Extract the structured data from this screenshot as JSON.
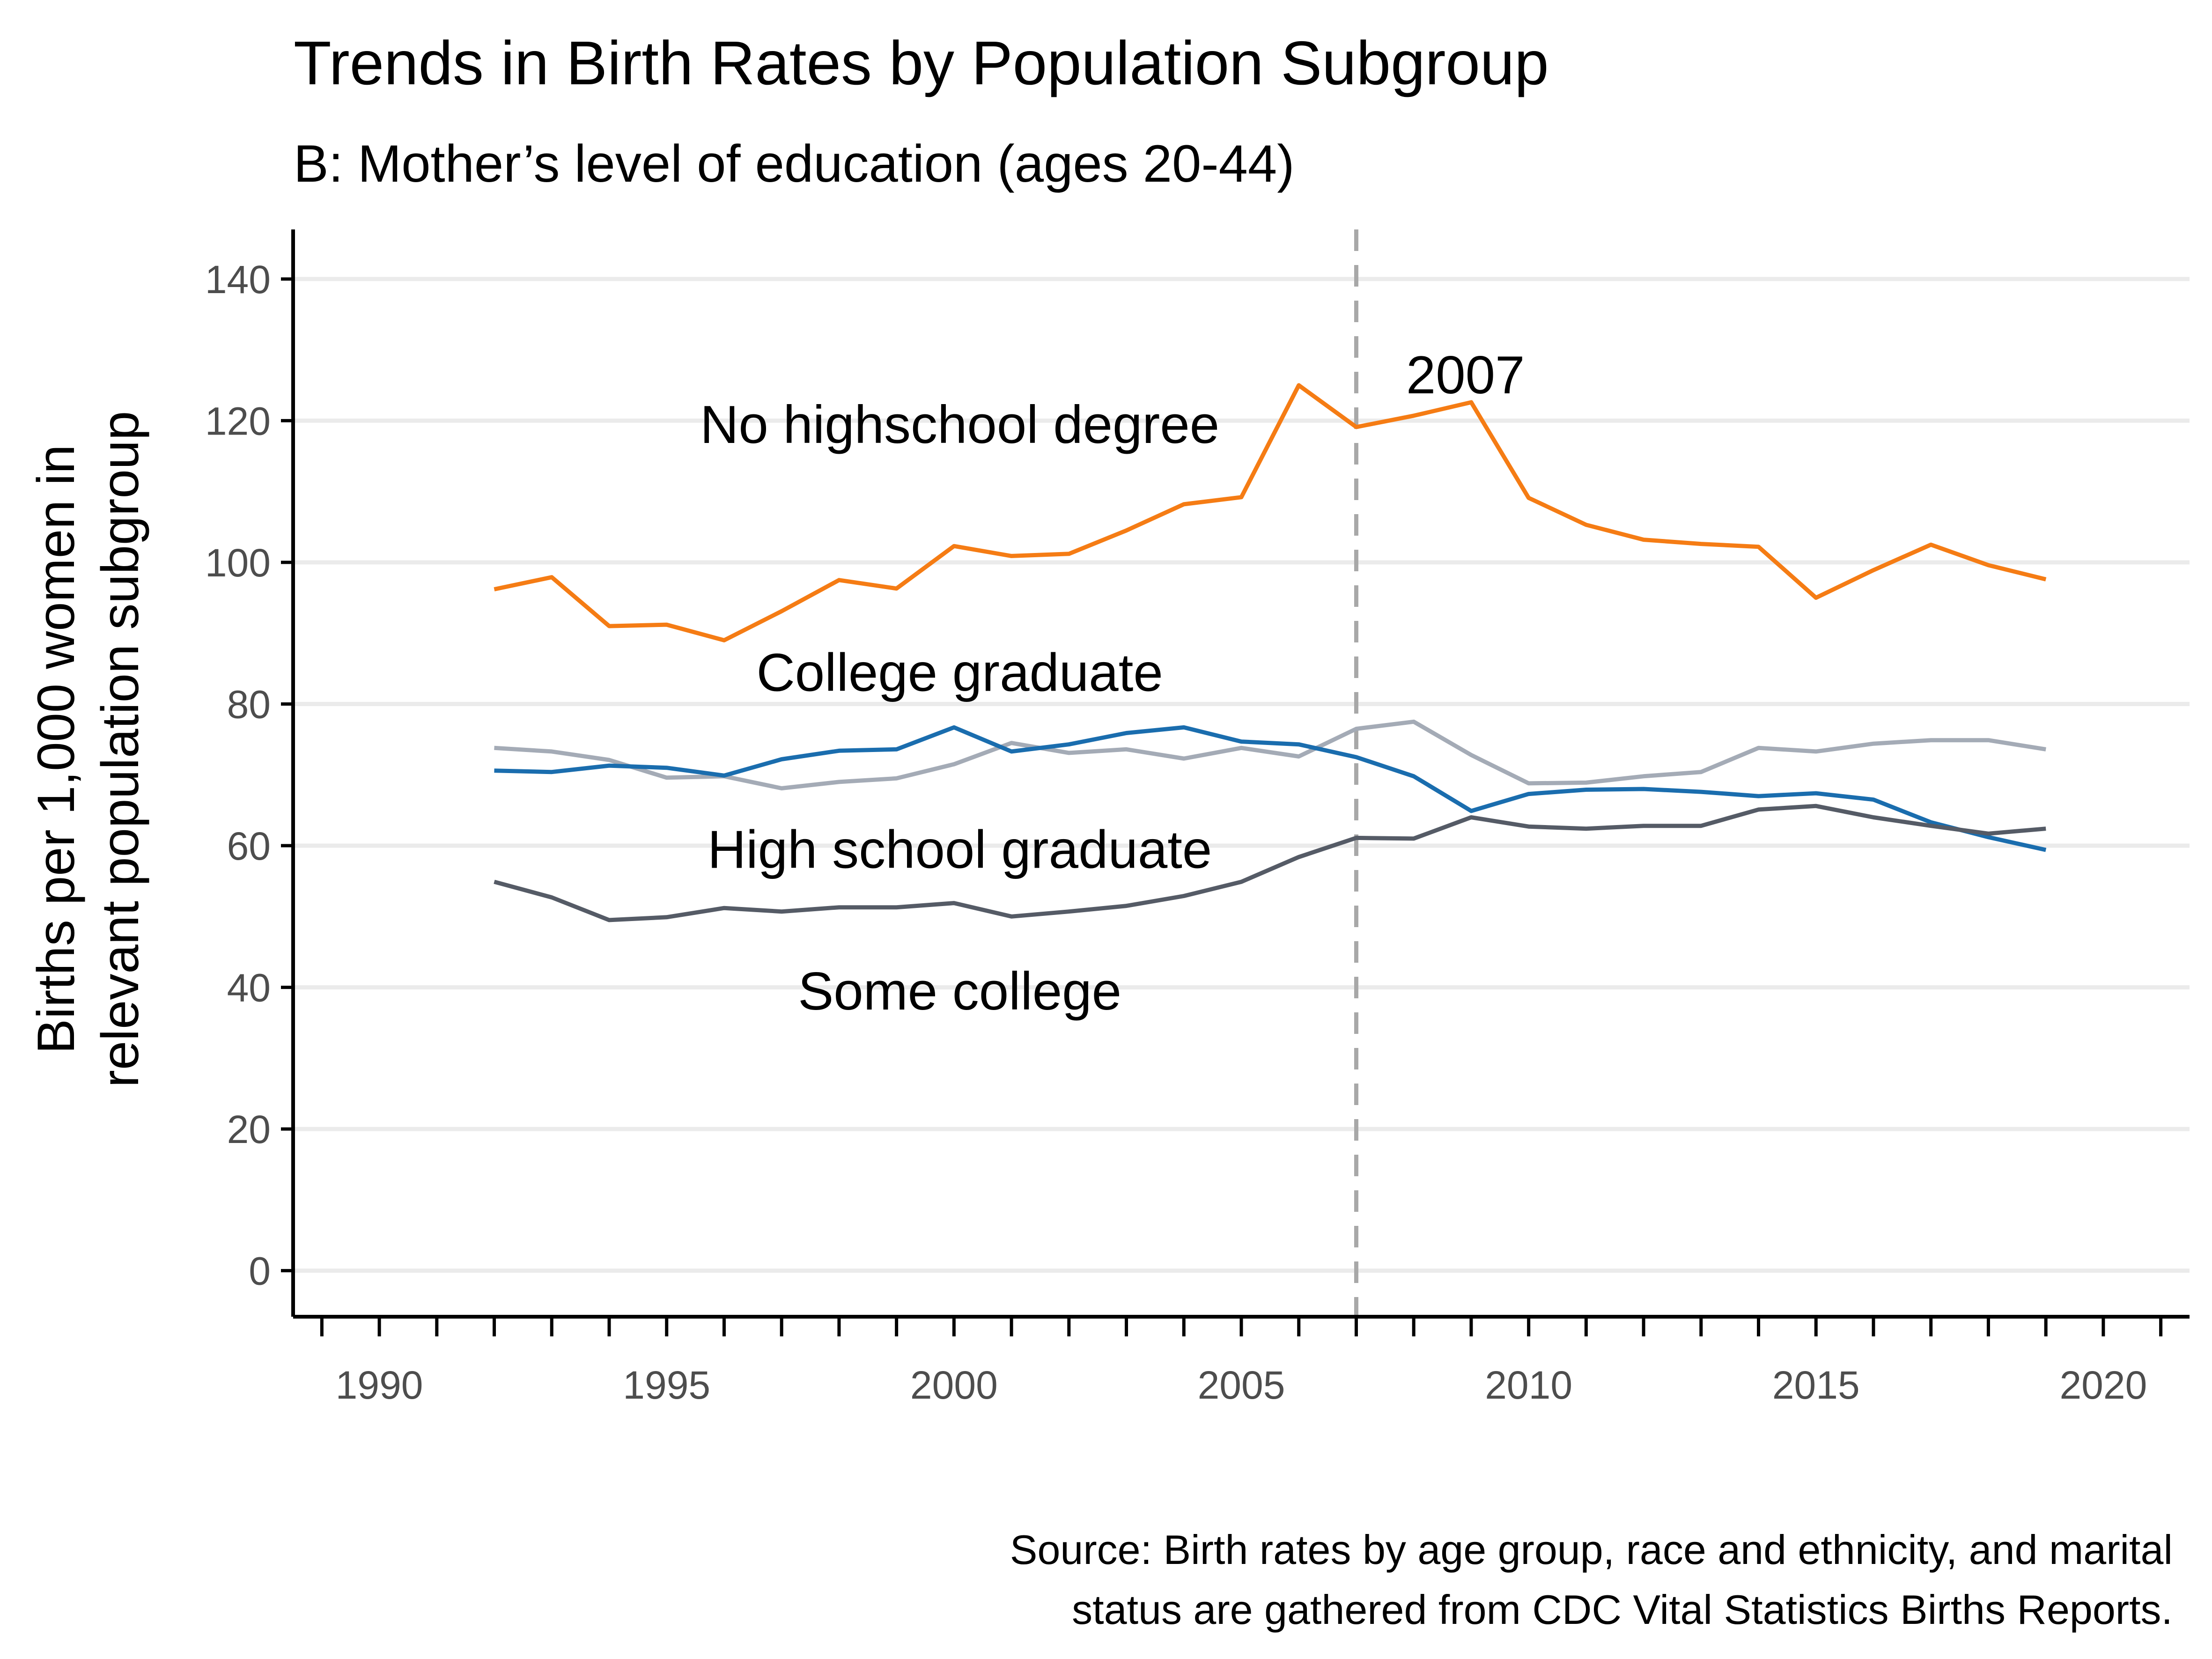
{
  "chart_data": {
    "type": "line",
    "title": "Trends in Birth Rates by Population Subgroup",
    "subtitle": "B: Mother’s level of education (ages 20-44)",
    "ylabel_lines": [
      "Births per 1,000 women in",
      "relevant population subgroup"
    ],
    "xlabel": "",
    "xlim": [
      1988.5,
      2021.5
    ],
    "ylim": [
      -6.5,
      147
    ],
    "x_ticks": [
      1990,
      1995,
      2000,
      2005,
      2010,
      2015,
      2020
    ],
    "x_tick_labels": [
      "1990",
      "1995",
      "2000",
      "2005",
      "2010",
      "2015",
      "2020"
    ],
    "y_ticks": [
      0,
      20,
      40,
      60,
      80,
      100,
      120,
      140
    ],
    "y_tick_labels": [
      "0",
      "20",
      "40",
      "60",
      "80",
      "100",
      "120",
      "140"
    ],
    "grid": "horizontal major",
    "x": [
      1992,
      1993,
      1994,
      1995,
      1996,
      1997,
      1998,
      1999,
      2000,
      2001,
      2002,
      2003,
      2004,
      2005,
      2006,
      2007,
      2008,
      2009,
      2010,
      2011,
      2012,
      2013,
      2014,
      2015,
      2016,
      2017,
      2018,
      2019
    ],
    "series": [
      {
        "name": "No highschool degree",
        "color": "#F57C14",
        "values": [
          96.2,
          97.9,
          91.0,
          91.2,
          89.0,
          93.1,
          97.5,
          96.3,
          102.3,
          100.9,
          101.2,
          104.5,
          108.2,
          109.2,
          125.0,
          119.1,
          120.7,
          122.6,
          109.1,
          105.3,
          103.2,
          102.6,
          102.2,
          95.0,
          98.9,
          102.5,
          99.6,
          97.6
        ]
      },
      {
        "name": "College graduate",
        "color": "#A4ABB6",
        "values": [
          73.8,
          73.3,
          72.1,
          69.6,
          69.8,
          68.1,
          69.0,
          69.5,
          71.5,
          74.5,
          73.1,
          73.6,
          72.3,
          73.8,
          72.6,
          76.5,
          77.5,
          72.8,
          68.8,
          68.9,
          69.8,
          70.4,
          73.8,
          73.3,
          74.4,
          74.9,
          74.9,
          73.6
        ]
      },
      {
        "name": "High school graduate",
        "color": "#1A6DAE",
        "values": [
          70.6,
          70.4,
          71.3,
          71.0,
          69.9,
          72.2,
          73.4,
          73.6,
          76.7,
          73.3,
          74.3,
          75.9,
          76.7,
          74.7,
          74.3,
          72.5,
          69.8,
          64.9,
          67.3,
          67.9,
          68.0,
          67.6,
          67.0,
          67.4,
          66.5,
          63.3,
          61.2,
          59.4
        ]
      },
      {
        "name": "Some college",
        "color": "#555B66",
        "values": [
          54.9,
          52.7,
          49.5,
          49.9,
          51.2,
          50.7,
          51.3,
          51.3,
          51.9,
          50.0,
          50.7,
          51.5,
          52.9,
          54.9,
          58.4,
          61.1,
          61.0,
          64.0,
          62.7,
          62.4,
          62.8,
          62.8,
          65.1,
          65.6,
          64.0,
          62.8,
          61.7,
          62.4
        ]
      }
    ],
    "series_labels": [
      {
        "text": "No highschool degree",
        "x": 2000.1,
        "y": 119.5
      },
      {
        "text": "College graduate",
        "x": 2000.1,
        "y": 84.5
      },
      {
        "text": "High school graduate",
        "x": 2000.1,
        "y": 59.5
      },
      {
        "text": "Some college",
        "x": 2000.1,
        "y": 39.5
      }
    ],
    "vline": {
      "x": 2007,
      "label": "2007",
      "label_x": 2008.9,
      "label_y": 126.5,
      "color": "#A8A8A8"
    },
    "caption_lines": [
      "Source: Birth rates by age group, race and ethnicity, and marital",
      "status are gathered from CDC Vital Statistics Births Reports."
    ],
    "legend": "none (direct labels)"
  }
}
